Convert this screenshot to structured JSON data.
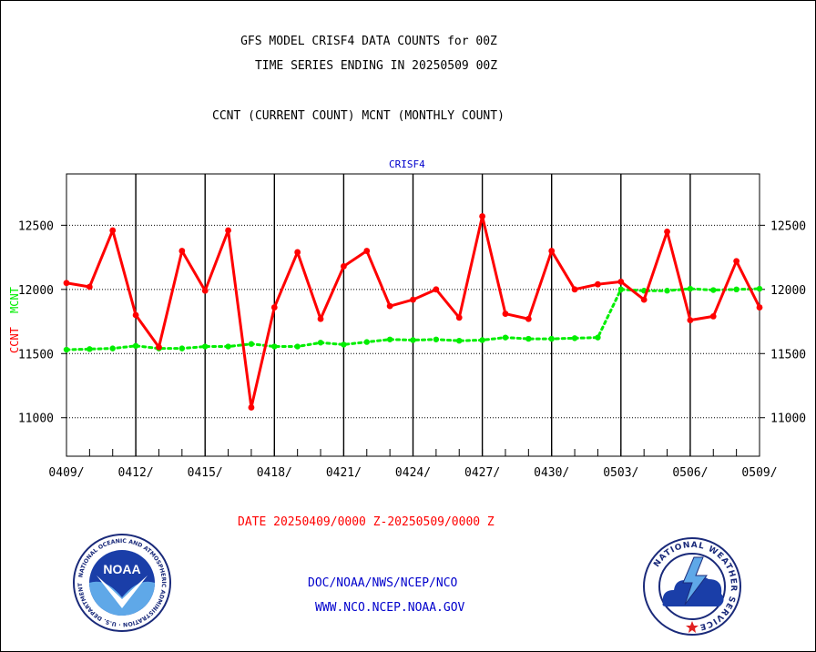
{
  "header": {
    "title_line1": "GFS MODEL CRISF4 DATA COUNTS for 00Z",
    "title_line2": "TIME SERIES ENDING IN 20250509 00Z",
    "subtitle": "CCNT (CURRENT COUNT) MCNT (MONTHLY COUNT)"
  },
  "footer": {
    "date_range": "DATE 20250409/0000 Z-20250509/0000 Z",
    "link1": "DOC/NOAA/NWS/NCEP/NCO",
    "link2": "WWW.NCO.NCEP.NOAA.GOV"
  },
  "logos": {
    "noaa": "NOAA",
    "noaa_ring": "NATIONAL OCEANIC AND ATMOSPHERIC ADMINISTRATION · U.S. DEPARTMENT OF COMMERCE ·",
    "nws_ring": "NATIONAL WEATHER SERVICE"
  },
  "colors": {
    "ccnt": "#ff0000",
    "mcnt": "#00ee00",
    "panel": "#0000cc"
  },
  "chart_data": {
    "type": "line",
    "panel_label": "CRISF4",
    "ylabel_series": [
      "CCNT",
      "MCNT"
    ],
    "ylim": [
      10700,
      12900
    ],
    "yticks": [
      11000,
      11500,
      12000,
      12500
    ],
    "ytick_labels": [
      "11000",
      "11500",
      "12000",
      "12500"
    ],
    "x_range": [
      "20250409",
      "20250509"
    ],
    "xtick_labels": [
      "0409/",
      "0412/",
      "0415/",
      "0418/",
      "0421/",
      "0424/",
      "0427/",
      "0430/",
      "0503/",
      "0506/",
      "0509/"
    ],
    "grid": true,
    "x": [
      "0409",
      "0410",
      "0411",
      "0412",
      "0413",
      "0414",
      "0415",
      "0416",
      "0417",
      "0418",
      "0419",
      "0420",
      "0421",
      "0422",
      "0423",
      "0424",
      "0425",
      "0426",
      "0427",
      "0428",
      "0429",
      "0430",
      "0501",
      "0502",
      "0503",
      "0504",
      "0505",
      "0506",
      "0507",
      "0508",
      "0509"
    ],
    "series": [
      {
        "name": "CCNT",
        "values": [
          12050,
          12020,
          12460,
          11800,
          11550,
          12300,
          11990,
          12460,
          11080,
          11860,
          12290,
          11770,
          12180,
          12300,
          11870,
          11920,
          12000,
          11780,
          12570,
          11810,
          11770,
          12300,
          12000,
          12040,
          12060,
          11920,
          12450,
          11760,
          11790,
          12220,
          11860
        ]
      },
      {
        "name": "MCNT",
        "values": [
          11530,
          11535,
          11540,
          11560,
          11540,
          11540,
          11555,
          11555,
          11575,
          11555,
          11555,
          11585,
          11570,
          11590,
          11610,
          11605,
          11610,
          11600,
          11605,
          11625,
          11615,
          11615,
          11620,
          11625,
          12000,
          11990,
          11990,
          12005,
          11995,
          12000,
          12005
        ]
      }
    ]
  }
}
